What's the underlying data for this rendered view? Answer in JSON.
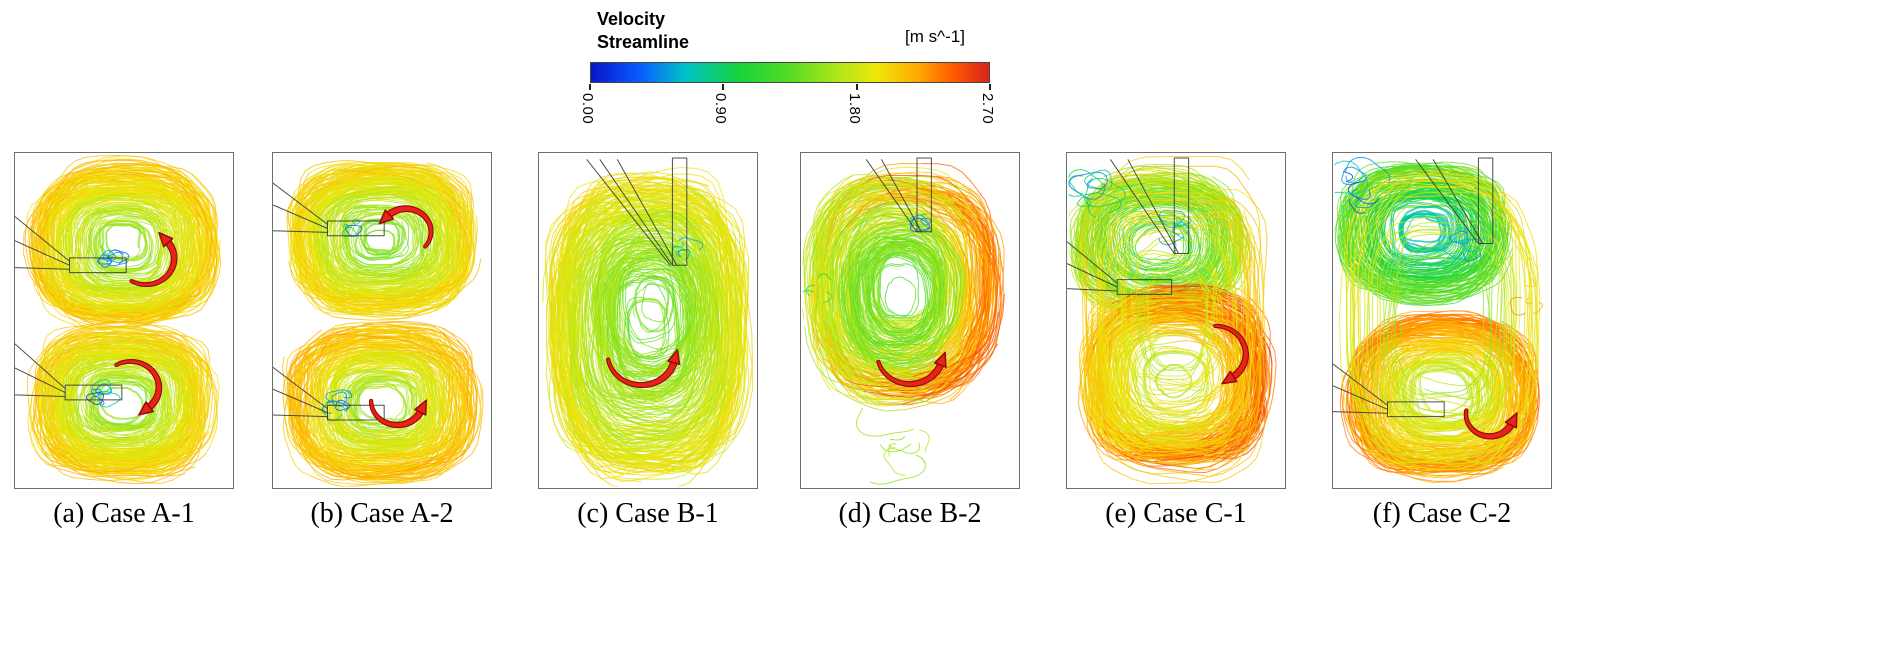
{
  "colorbar": {
    "title_line1": "Velocity",
    "title_line2": "Streamline",
    "units": "[m s^-1]",
    "ticks": [
      "0.00",
      "0.90",
      "1.80",
      "2.70"
    ],
    "stops": [
      {
        "p": 0.0,
        "c": "#0a14c8"
      },
      {
        "p": 0.12,
        "c": "#0a5aff"
      },
      {
        "p": 0.24,
        "c": "#00c3c8"
      },
      {
        "p": 0.37,
        "c": "#17d23c"
      },
      {
        "p": 0.5,
        "c": "#55dc23"
      },
      {
        "p": 0.62,
        "c": "#b0e619"
      },
      {
        "p": 0.72,
        "c": "#f0e60a"
      },
      {
        "p": 0.82,
        "c": "#ffaa00"
      },
      {
        "p": 0.91,
        "c": "#ff5a00"
      },
      {
        "p": 1.0,
        "c": "#d7231e"
      }
    ]
  },
  "chart_data": {
    "type": "line",
    "subtype": "velocity-streamline-panels",
    "title": "Velocity Streamline",
    "units": "[m s^-1]",
    "colorbar_range": [
      0.0,
      2.7
    ],
    "colorbar_ticks": [
      0.0,
      0.9,
      1.8,
      2.7
    ],
    "panels": [
      {
        "caption": "(a) Case A-1",
        "render": {
          "seed": 11,
          "vortices": [
            {
              "cx": 0.5,
              "cy": 0.275,
              "rx": 0.44,
              "ry": 0.245,
              "v0": 0.52,
              "v1": 0.78,
              "loops": 85,
              "sq": 2.6
            },
            {
              "cx": 0.49,
              "cy": 0.745,
              "rx": 0.44,
              "ry": 0.235,
              "v0": 0.52,
              "v1": 0.78,
              "loops": 85,
              "sq": 2.6
            }
          ],
          "blobs": [
            {
              "x": 0.44,
              "y": 0.335,
              "r": 0.06,
              "count": 7,
              "v0": 0.05,
              "v1": 0.3,
              "revs": 1.0
            },
            {
              "x": 0.4,
              "y": 0.715,
              "r": 0.06,
              "count": 6,
              "v0": 0.05,
              "v1": 0.3,
              "revs": 1.0
            }
          ],
          "nozzles": [
            {
              "type": "side",
              "y": 0.335,
              "x1": 0.25,
              "len": 0.26,
              "fan": [
                [
                  0,
                  0.19,
                  -0.012
                ],
                [
                  0,
                  0.262,
                  0
                ],
                [
                  0,
                  0.342,
                  0.012
                ]
              ]
            },
            {
              "type": "side",
              "y": 0.715,
              "x1": 0.23,
              "len": 0.26,
              "fan": [
                [
                  0,
                  0.57,
                  -0.012
                ],
                [
                  0,
                  0.642,
                  0
                ],
                [
                  0,
                  0.722,
                  0.012
                ]
              ]
            }
          ],
          "arrows": [
            {
              "cx": 0.6,
              "cy": 0.315,
              "r": 0.13,
              "a0": 120,
              "a1": -45
            },
            {
              "cx": 0.53,
              "cy": 0.7,
              "r": 0.13,
              "a0": -120,
              "a1": 55
            }
          ]
        }
      },
      {
        "caption": "(b) Case A-2",
        "render": {
          "seed": 22,
          "vortices": [
            {
              "cx": 0.5,
              "cy": 0.255,
              "rx": 0.44,
              "ry": 0.23,
              "v0": 0.5,
              "v1": 0.76,
              "loops": 85,
              "sq": 2.6
            },
            {
              "cx": 0.5,
              "cy": 0.75,
              "rx": 0.44,
              "ry": 0.235,
              "v0": 0.54,
              "v1": 0.8,
              "loops": 85,
              "sq": 2.6
            }
          ],
          "blobs": [
            {
              "x": 0.3,
              "y": 0.745,
              "r": 0.07,
              "count": 7,
              "v0": 0.05,
              "v1": 0.3,
              "revs": 1.0
            },
            {
              "x": 0.36,
              "y": 0.215,
              "r": 0.05,
              "count": 4,
              "v0": 0.12,
              "v1": 0.35,
              "revs": 1.0
            }
          ],
          "nozzles": [
            {
              "type": "side",
              "y": 0.225,
              "x1": 0.25,
              "len": 0.26,
              "fan": [
                [
                  0,
                  0.09,
                  -0.012
                ],
                [
                  0,
                  0.155,
                  0
                ],
                [
                  0,
                  0.232,
                  0.012
                ]
              ]
            },
            {
              "type": "side",
              "y": 0.775,
              "x1": 0.25,
              "len": 0.26,
              "fan": [
                [
                  0,
                  0.64,
                  -0.012
                ],
                [
                  0,
                  0.705,
                  0
                ],
                [
                  0,
                  0.782,
                  0.012
                ]
              ]
            }
          ],
          "arrows": [
            {
              "cx": 0.61,
              "cy": 0.235,
              "r": 0.115,
              "a0": 400,
              "a1": 220
            },
            {
              "cx": 0.57,
              "cy": 0.74,
              "r": 0.12,
              "a0": 180,
              "a1": 20
            }
          ]
        }
      },
      {
        "caption": "(c) Case B-1",
        "render": {
          "seed": 33,
          "vortices": [
            {
              "cx": 0.5,
              "cy": 0.52,
              "rx": 0.46,
              "ry": 0.455,
              "v0": 0.48,
              "v1": 0.72,
              "loops": 95,
              "sq": 2.7
            },
            {
              "cx": 0.52,
              "cy": 0.46,
              "rx": 0.3,
              "ry": 0.28,
              "v0": 0.5,
              "v1": 0.62,
              "loops": 30,
              "sq": 2.2
            }
          ],
          "blobs": [
            {
              "x": 0.66,
              "y": 0.3,
              "r": 0.06,
              "count": 5,
              "v0": 0.15,
              "v1": 0.4,
              "revs": 0.9
            }
          ],
          "nozzles": [
            {
              "type": "top",
              "x": 0.645,
              "tip": 0.335,
              "fan": [
                [
                  0.28,
                  0.02,
                  0.0
                ],
                [
                  0.36,
                  0.02,
                  0.02
                ],
                [
                  0.22,
                  0.02,
                  -0.01
                ]
              ]
            }
          ],
          "arrows": [
            {
              "cx": 0.47,
              "cy": 0.6,
              "r": 0.155,
              "a0": 170,
              "a1": 10
            }
          ]
        }
      },
      {
        "caption": "(d) Case B-2",
        "render": {
          "seed": 44,
          "vortices": [
            {
              "cx": 0.47,
              "cy": 0.4,
              "rx": 0.45,
              "ry": 0.355,
              "v0": 0.5,
              "v1": 0.79,
              "loops": 85,
              "sq": 2.5,
              "xBias": 0.35
            },
            {
              "cx": 0.45,
              "cy": 0.42,
              "rx": 0.28,
              "ry": 0.24,
              "v0": 0.46,
              "v1": 0.58,
              "loops": 25,
              "sq": 2.2
            }
          ],
          "blobs": [
            {
              "x": 0.56,
              "y": 0.225,
              "r": 0.05,
              "count": 5,
              "v0": 0.1,
              "v1": 0.3,
              "revs": 0.9
            },
            {
              "x": 0.47,
              "y": 0.86,
              "r": 0.16,
              "count": 9,
              "v0": 0.55,
              "v1": 0.7,
              "revs": 0.35
            },
            {
              "x": 0.06,
              "y": 0.42,
              "r": 0.09,
              "count": 4,
              "v0": 0.3,
              "v1": 0.45,
              "revs": 0.5
            }
          ],
          "nozzles": [
            {
              "type": "top",
              "x": 0.565,
              "tip": 0.235,
              "fan": [
                [
                  0.3,
                  0.02,
                  0.0
                ],
                [
                  0.37,
                  0.02,
                  0.02
                ]
              ]
            }
          ],
          "arrows": [
            {
              "cx": 0.5,
              "cy": 0.6,
              "r": 0.15,
              "a0": 165,
              "a1": 15
            }
          ]
        }
      },
      {
        "caption": "(e) Case C-1",
        "render": {
          "seed": 55,
          "vortices": [
            {
              "cx": 0.42,
              "cy": 0.27,
              "rx": 0.4,
              "ry": 0.215,
              "v0": 0.36,
              "v1": 0.62,
              "loops": 60,
              "sq": 2.4
            },
            {
              "cx": 0.5,
              "cy": 0.67,
              "rx": 0.44,
              "ry": 0.27,
              "v0": 0.58,
              "v1": 0.85,
              "loops": 80,
              "sq": 2.5,
              "xBias": 0.25
            },
            {
              "cx": 0.5,
              "cy": 0.5,
              "rx": 0.465,
              "ry": 0.47,
              "v0": 0.6,
              "v1": 0.78,
              "loops": 22,
              "sq": 3.2
            }
          ],
          "blobs": [
            {
              "x": 0.12,
              "y": 0.12,
              "r": 0.1,
              "count": 8,
              "v0": 0.1,
              "v1": 0.35,
              "revs": 0.9
            },
            {
              "x": 0.5,
              "y": 0.225,
              "r": 0.07,
              "count": 6,
              "v0": 0.15,
              "v1": 0.4,
              "revs": 0.9
            }
          ],
          "nozzles": [
            {
              "type": "top",
              "x": 0.525,
              "tip": 0.3,
              "fan": [
                [
                  0.2,
                  0.02,
                  0.0
                ],
                [
                  0.28,
                  0.02,
                  0.02
                ]
              ]
            },
            {
              "type": "side",
              "y": 0.4,
              "x1": 0.23,
              "len": 0.25,
              "fan": [
                [
                  0,
                  0.265,
                  -0.012
                ],
                [
                  0,
                  0.33,
                  0
                ],
                [
                  0,
                  0.405,
                  0.012
                ]
              ]
            }
          ],
          "arrows": [
            {
              "cx": 0.68,
              "cy": 0.6,
              "r": 0.14,
              "a0": -90,
              "a1": 60
            }
          ]
        }
      },
      {
        "caption": "(f) Case C-2",
        "render": {
          "seed": 66,
          "vortices": [
            {
              "cx": 0.42,
              "cy": 0.235,
              "rx": 0.4,
              "ry": 0.205,
              "v0": 0.18,
              "v1": 0.52,
              "loops": 65,
              "sq": 2.4
            },
            {
              "cx": 0.5,
              "cy": 0.72,
              "rx": 0.44,
              "ry": 0.24,
              "v0": 0.55,
              "v1": 0.86,
              "loops": 80,
              "sq": 2.5
            },
            {
              "cx": 0.5,
              "cy": 0.5,
              "rx": 0.465,
              "ry": 0.47,
              "v0": 0.5,
              "v1": 0.72,
              "loops": 18,
              "sq": 3.2
            }
          ],
          "blobs": [
            {
              "x": 0.1,
              "y": 0.1,
              "r": 0.12,
              "count": 9,
              "v0": 0.05,
              "v1": 0.25,
              "revs": 0.9
            },
            {
              "x": 0.6,
              "y": 0.275,
              "r": 0.07,
              "count": 6,
              "v0": 0.05,
              "v1": 0.3,
              "revs": 0.9
            },
            {
              "x": 0.9,
              "y": 0.42,
              "r": 0.08,
              "count": 4,
              "v0": 0.72,
              "v1": 0.88,
              "revs": 0.45
            }
          ],
          "nozzles": [
            {
              "type": "top",
              "x": 0.7,
              "tip": 0.27,
              "fan": [
                [
                  0.38,
                  0.02,
                  0.0
                ],
                [
                  0.46,
                  0.02,
                  0.02
                ]
              ]
            },
            {
              "type": "side",
              "y": 0.765,
              "x1": 0.25,
              "len": 0.26,
              "fan": [
                [
                  0,
                  0.63,
                  -0.012
                ],
                [
                  0,
                  0.695,
                  0
                ],
                [
                  0,
                  0.772,
                  0.012
                ]
              ]
            }
          ],
          "arrows": [
            {
              "cx": 0.72,
              "cy": 0.78,
              "r": 0.11,
              "a0": 190,
              "a1": 20
            }
          ]
        }
      }
    ]
  }
}
